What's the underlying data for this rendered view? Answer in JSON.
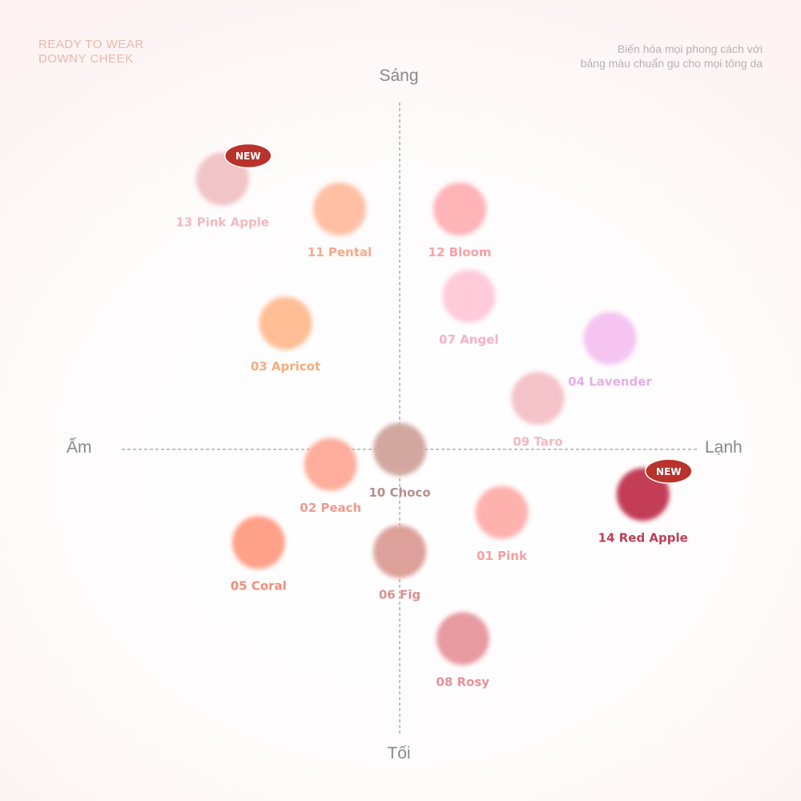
{
  "header": {
    "brand_line1": "READY TO WEAR",
    "brand_line2": "DOWNY CHEEK",
    "tagline_line1": "Biến hóa mọi phong cách với",
    "tagline_line2": "bảng màu chuẩn gu cho mọi tông da"
  },
  "axes": {
    "top": "Sáng",
    "bottom": "Tối",
    "left": "Ấm",
    "right": "Lạnh"
  },
  "chart_data": {
    "type": "scatter",
    "x_axis": {
      "negative_label": "Ấm",
      "positive_label": "Lạnh"
    },
    "y_axis": {
      "positive_label": "Sáng",
      "negative_label": "Tối"
    },
    "xlim": [
      -100,
      100
    ],
    "ylim": [
      -100,
      100
    ],
    "badge_text": "NEW",
    "points": [
      {
        "label": "13 Pink Apple",
        "x": -59,
        "y": 90,
        "color": "#f1c4c7",
        "label_color": "#f1b9c0",
        "badge": true
      },
      {
        "label": "11 Pental",
        "x": -20,
        "y": 80,
        "color": "#ffbfa4",
        "label_color": "#f6a98c",
        "badge": false
      },
      {
        "label": "12 Bloom",
        "x": 20,
        "y": 80,
        "color": "#ffb4b7",
        "label_color": "#f7a1a6",
        "badge": false
      },
      {
        "label": "03 Apricot",
        "x": -38,
        "y": 42,
        "color": "#ffbe95",
        "label_color": "#f7aa7c",
        "badge": false
      },
      {
        "label": "07 Angel",
        "x": 23,
        "y": 51,
        "color": "#ffcad9",
        "label_color": "#f6b1c4",
        "badge": false
      },
      {
        "label": "04 Lavender",
        "x": 70,
        "y": 37,
        "color": "#f5c4f1",
        "label_color": "#e6aeea",
        "badge": false
      },
      {
        "label": "09 Taro",
        "x": 46,
        "y": 17,
        "color": "#f4c3c9",
        "label_color": "#f0b8c0",
        "badge": false
      },
      {
        "label": "10 Choco",
        "x": 0,
        "y": 0,
        "color": "#d1a7a0",
        "label_color": "#b98d8c",
        "badge": false
      },
      {
        "label": "02 Peach",
        "x": -23,
        "y": -5,
        "color": "#ffad9c",
        "label_color": "#f09b8e",
        "badge": false
      },
      {
        "label": "14 Red Apple",
        "x": 81,
        "y": -15,
        "color": "#c33d57",
        "label_color": "#bc4057",
        "badge": true
      },
      {
        "label": "01 Pink",
        "x": 34,
        "y": -21,
        "color": "#ffb1ae",
        "label_color": "#f49ea0",
        "badge": false
      },
      {
        "label": "05 Coral",
        "x": -47,
        "y": -31,
        "color": "#ffa088",
        "label_color": "#f08e7b",
        "badge": false
      },
      {
        "label": "06 Fig",
        "x": 0,
        "y": -34,
        "color": "#dea09a",
        "label_color": "#dc8f90",
        "badge": false
      },
      {
        "label": "08 Rosy",
        "x": 21,
        "y": -63,
        "color": "#e89aa1",
        "label_color": "#e5919b",
        "badge": false
      }
    ]
  }
}
